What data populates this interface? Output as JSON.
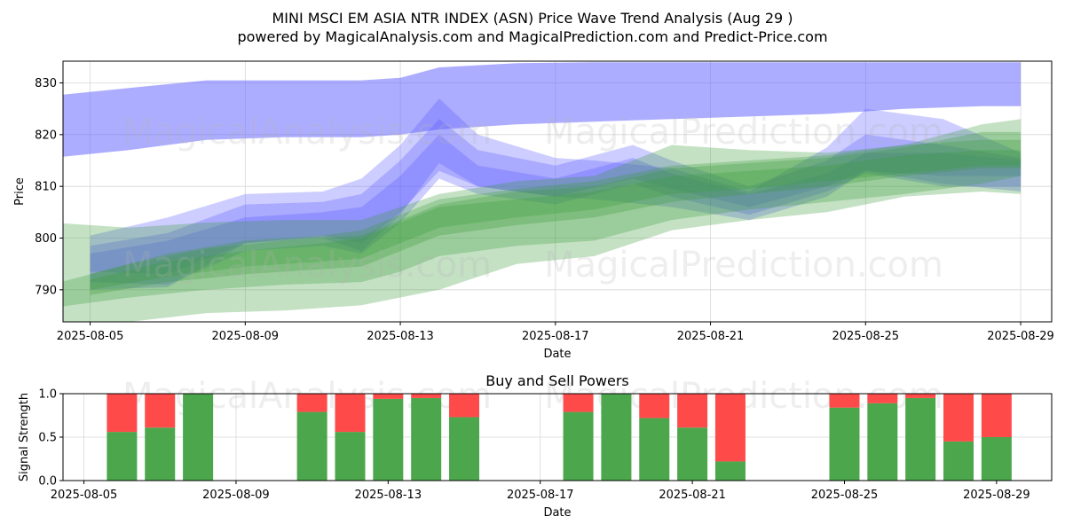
{
  "header": {
    "title": "MINI MSCI EM ASIA NTR INDEX (ASN) Price Wave Trend Analysis (Aug 29 )",
    "subtitle": "powered by MagicalAnalysis.com and MagicalPrediction.com and Predict-Price.com"
  },
  "watermarks": [
    "MagicalAnalysis.com",
    "MagicalPrediction.com"
  ],
  "colors": {
    "blue_band": "#5b5bff",
    "green_band": "#3a9a3a",
    "buy": "#4ca64c",
    "sell": "#ff4a4a"
  },
  "chart_data": [
    {
      "type": "area",
      "title": "",
      "xlabel": "Date",
      "ylabel": "Price",
      "xlim": [
        "2025-08-04.3",
        "2025-08-29.8"
      ],
      "ylim": [
        783.8,
        834.2
      ],
      "yticks": [
        790,
        800,
        810,
        820,
        830
      ],
      "xticks": [
        "2025-08-05",
        "2025-08-09",
        "2025-08-13",
        "2025-08-17",
        "2025-08-21",
        "2025-08-25",
        "2025-08-29"
      ],
      "grid": true,
      "series": [
        {
          "color": "blue",
          "x": [
            "2025-08-04",
            "2025-08-06",
            "2025-08-08",
            "2025-08-10",
            "2025-08-12",
            "2025-08-13",
            "2025-08-14",
            "2025-08-16",
            "2025-08-18",
            "2025-08-20",
            "2025-08-22",
            "2025-08-24",
            "2025-08-26",
            "2025-08-28",
            "2025-08-29"
          ],
          "upper": [
            827.5,
            829.0,
            830.5,
            830.5,
            830.5,
            831.0,
            833.0,
            833.8,
            834.0,
            834.0,
            834.0,
            834.0,
            834.0,
            834.0,
            834.0
          ],
          "lower": [
            815.5,
            817.0,
            819.0,
            819.5,
            819.5,
            820.0,
            821.0,
            822.0,
            822.5,
            823.0,
            823.5,
            824.0,
            825.0,
            825.5,
            825.5
          ]
        },
        {
          "color": "blue",
          "x": [
            "2025-08-05",
            "2025-08-07",
            "2025-08-09",
            "2025-08-11",
            "2025-08-12",
            "2025-08-13",
            "2025-08-14",
            "2025-08-15",
            "2025-08-17",
            "2025-08-18",
            "2025-08-20",
            "2025-08-22",
            "2025-08-24",
            "2025-08-25",
            "2025-08-27",
            "2025-08-29"
          ],
          "upper": [
            800.5,
            804.0,
            808.5,
            809.0,
            811.5,
            818.0,
            827.0,
            820.0,
            815.5,
            815.0,
            813.5,
            809.0,
            817.5,
            825.0,
            823.0,
            816.5
          ],
          "lower": [
            790.0,
            790.5,
            799.0,
            800.0,
            797.5,
            804.5,
            814.5,
            810.0,
            808.0,
            807.5,
            806.0,
            803.5,
            808.0,
            813.0,
            810.5,
            809.0
          ]
        },
        {
          "color": "blue",
          "x": [
            "2025-08-05",
            "2025-08-07",
            "2025-08-09",
            "2025-08-11",
            "2025-08-12",
            "2025-08-13",
            "2025-08-14",
            "2025-08-15",
            "2025-08-17",
            "2025-08-19",
            "2025-08-20",
            "2025-08-22",
            "2025-08-24",
            "2025-08-25",
            "2025-08-27",
            "2025-08-29"
          ],
          "upper": [
            798.5,
            801.0,
            806.5,
            807.0,
            808.5,
            815.0,
            823.0,
            817.0,
            814.0,
            818.0,
            815.0,
            810.0,
            815.0,
            820.0,
            818.0,
            815.5
          ],
          "lower": [
            791.5,
            791.0,
            797.5,
            798.5,
            797.0,
            803.0,
            811.5,
            808.5,
            806.5,
            810.5,
            808.0,
            804.5,
            809.0,
            812.5,
            810.0,
            810.0
          ]
        },
        {
          "color": "blue",
          "x": [
            "2025-08-05",
            "2025-08-07",
            "2025-08-09",
            "2025-08-11",
            "2025-08-12",
            "2025-08-13",
            "2025-08-14",
            "2025-08-15",
            "2025-08-17",
            "2025-08-19",
            "2025-08-20",
            "2025-08-22",
            "2025-08-24",
            "2025-08-25",
            "2025-08-27",
            "2025-08-29"
          ],
          "upper": [
            797.0,
            799.5,
            804.0,
            805.0,
            806.0,
            812.0,
            820.0,
            814.0,
            811.5,
            815.5,
            812.5,
            808.5,
            812.5,
            816.5,
            816.5,
            815.0
          ],
          "lower": [
            793.5,
            793.0,
            799.0,
            800.5,
            799.0,
            805.0,
            813.0,
            810.0,
            808.0,
            811.5,
            809.5,
            806.0,
            810.0,
            813.0,
            812.0,
            812.0
          ]
        },
        {
          "color": "green",
          "x": [
            "2025-08-04",
            "2025-08-06",
            "2025-08-08",
            "2025-08-10",
            "2025-08-12",
            "2025-08-14",
            "2025-08-16",
            "2025-08-18",
            "2025-08-20",
            "2025-08-22",
            "2025-08-24",
            "2025-08-26",
            "2025-08-28",
            "2025-08-29"
          ],
          "upper": [
            803.0,
            802.0,
            803.0,
            803.5,
            803.5,
            808.5,
            811.0,
            812.0,
            818.0,
            817.0,
            816.5,
            818.0,
            822.0,
            823.0
          ],
          "lower": [
            783.8,
            783.8,
            785.5,
            786.0,
            787.0,
            790.0,
            795.0,
            796.5,
            801.5,
            803.5,
            805.0,
            808.0,
            809.0,
            808.5
          ]
        },
        {
          "color": "green",
          "x": [
            "2025-08-04",
            "2025-08-06",
            "2025-08-08",
            "2025-08-10",
            "2025-08-12",
            "2025-08-13",
            "2025-08-14",
            "2025-08-16",
            "2025-08-18",
            "2025-08-20",
            "2025-08-22",
            "2025-08-24",
            "2025-08-26",
            "2025-08-28",
            "2025-08-29"
          ],
          "upper": [
            791.0,
            795.0,
            798.0,
            799.5,
            800.5,
            803.5,
            806.5,
            809.0,
            810.0,
            813.5,
            814.5,
            815.5,
            817.5,
            820.5,
            820.5
          ],
          "lower": [
            786.5,
            788.5,
            790.0,
            791.0,
            791.5,
            793.5,
            796.5,
            798.5,
            799.5,
            803.5,
            805.5,
            807.0,
            808.5,
            810.5,
            812.0
          ]
        },
        {
          "color": "green",
          "x": [
            "2025-08-05",
            "2025-08-07",
            "2025-08-09",
            "2025-08-11",
            "2025-08-12",
            "2025-08-13",
            "2025-08-14",
            "2025-08-16",
            "2025-08-18",
            "2025-08-20",
            "2025-08-22",
            "2025-08-24",
            "2025-08-26",
            "2025-08-28",
            "2025-08-29"
          ],
          "upper": [
            793.0,
            797.0,
            799.5,
            800.5,
            801.5,
            804.5,
            807.5,
            809.5,
            811.0,
            814.0,
            815.0,
            816.0,
            818.0,
            819.0,
            819.0
          ],
          "lower": [
            789.0,
            791.5,
            793.0,
            794.0,
            794.5,
            797.5,
            800.5,
            802.5,
            804.0,
            807.0,
            808.5,
            810.0,
            812.0,
            813.5,
            813.5
          ]
        },
        {
          "color": "green",
          "x": [
            "2025-08-05",
            "2025-08-07",
            "2025-08-09",
            "2025-08-11",
            "2025-08-12",
            "2025-08-13",
            "2025-08-14",
            "2025-08-16",
            "2025-08-18",
            "2025-08-20",
            "2025-08-22",
            "2025-08-24",
            "2025-08-26",
            "2025-08-28",
            "2025-08-29"
          ],
          "upper": [
            792.0,
            795.5,
            797.5,
            799.0,
            800.0,
            803.0,
            806.0,
            807.5,
            809.0,
            812.0,
            813.0,
            814.0,
            816.0,
            817.0,
            817.0
          ],
          "lower": [
            790.0,
            792.5,
            794.5,
            795.5,
            796.0,
            799.0,
            802.0,
            804.0,
            805.5,
            808.5,
            809.5,
            811.0,
            812.5,
            814.0,
            814.0
          ]
        }
      ]
    },
    {
      "type": "bar",
      "title": "Buy and Sell Powers",
      "xlabel": "Date",
      "ylabel": "Signal Strength",
      "ylim": [
        0,
        1
      ],
      "yticks": [
        "0.0",
        "0.5",
        "1.0"
      ],
      "xticks": [
        "2025-08-05",
        "2025-08-09",
        "2025-08-13",
        "2025-08-17",
        "2025-08-21",
        "2025-08-25",
        "2025-08-29"
      ],
      "categories": [
        "2025-08-06",
        "2025-08-07",
        "2025-08-08",
        "2025-08-11",
        "2025-08-12",
        "2025-08-13",
        "2025-08-14",
        "2025-08-15",
        "2025-08-18",
        "2025-08-19",
        "2025-08-20",
        "2025-08-21",
        "2025-08-22",
        "2025-08-25",
        "2025-08-26",
        "2025-08-27",
        "2025-08-28",
        "2025-08-29"
      ],
      "series": [
        {
          "color": "green",
          "values": [
            0.56,
            0.61,
            1.0,
            0.79,
            0.56,
            0.94,
            0.95,
            0.73,
            0.79,
            1.0,
            0.72,
            0.61,
            0.22,
            0.84,
            0.89,
            0.95,
            0.45,
            0.5
          ]
        },
        {
          "color": "red",
          "values": [
            0.44,
            0.39,
            0.0,
            0.21,
            0.44,
            0.06,
            0.05,
            0.27,
            0.21,
            0.0,
            0.28,
            0.39,
            0.78,
            0.16,
            0.11,
            0.05,
            0.55,
            0.5
          ]
        }
      ]
    }
  ]
}
